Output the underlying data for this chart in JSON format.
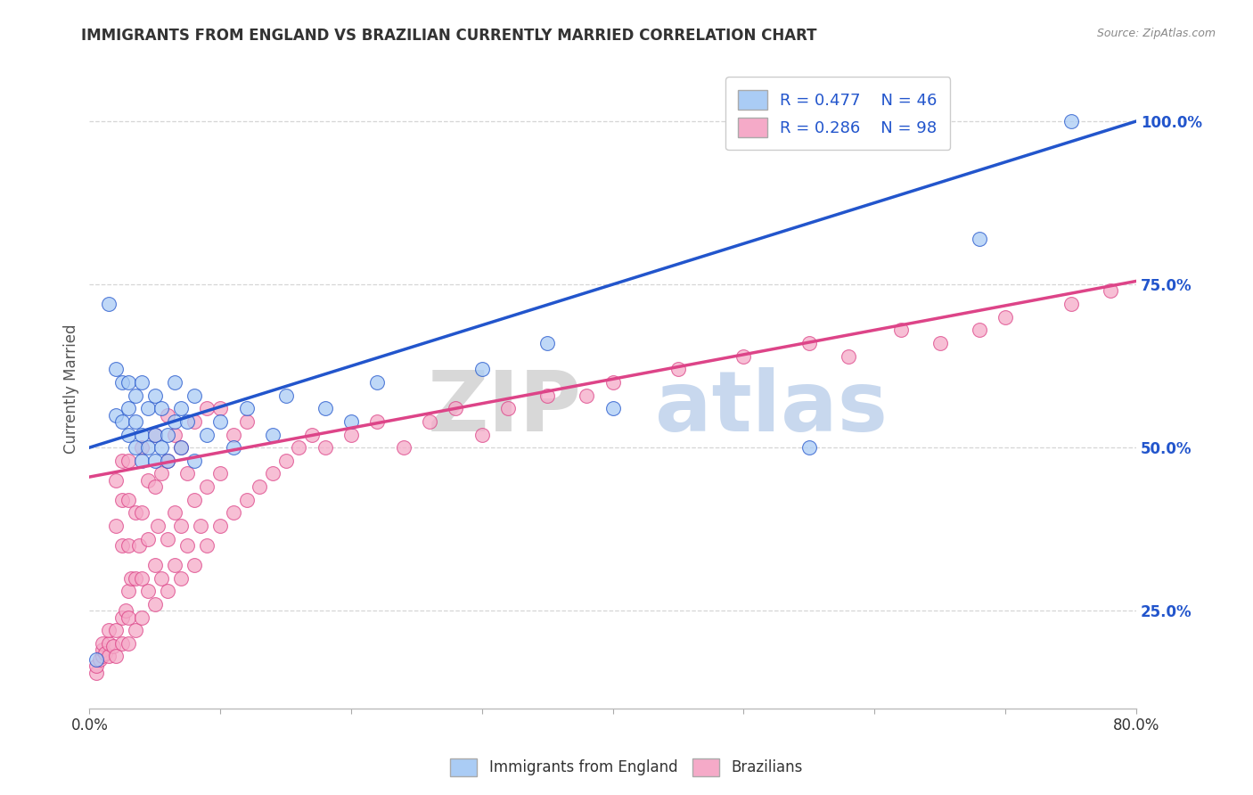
{
  "title": "IMMIGRANTS FROM ENGLAND VS BRAZILIAN CURRENTLY MARRIED CORRELATION CHART",
  "source": "Source: ZipAtlas.com",
  "ylabel": "Currently Married",
  "xmin": 0.0,
  "xmax": 0.8,
  "ymin": 0.1,
  "ymax": 1.08,
  "yticks": [
    0.25,
    0.5,
    0.75,
    1.0
  ],
  "ytick_labels": [
    "25.0%",
    "50.0%",
    "75.0%",
    "100.0%"
  ],
  "blue_R": 0.477,
  "blue_N": 46,
  "pink_R": 0.286,
  "pink_N": 98,
  "blue_color": "#aaccf5",
  "blue_line_color": "#2255cc",
  "pink_color": "#f5aac8",
  "pink_line_color": "#dd4488",
  "legend_label_blue": "Immigrants from England",
  "legend_label_pink": "Brazilians",
  "blue_scatter_x": [
    0.005,
    0.015,
    0.02,
    0.02,
    0.025,
    0.025,
    0.03,
    0.03,
    0.03,
    0.035,
    0.035,
    0.035,
    0.04,
    0.04,
    0.04,
    0.045,
    0.045,
    0.05,
    0.05,
    0.05,
    0.055,
    0.055,
    0.06,
    0.06,
    0.065,
    0.065,
    0.07,
    0.07,
    0.075,
    0.08,
    0.08,
    0.09,
    0.1,
    0.11,
    0.12,
    0.14,
    0.15,
    0.18,
    0.2,
    0.22,
    0.3,
    0.35,
    0.4,
    0.55,
    0.68,
    0.75
  ],
  "blue_scatter_y": [
    0.175,
    0.72,
    0.55,
    0.62,
    0.54,
    0.6,
    0.52,
    0.56,
    0.6,
    0.5,
    0.54,
    0.58,
    0.48,
    0.52,
    0.6,
    0.5,
    0.56,
    0.48,
    0.52,
    0.58,
    0.5,
    0.56,
    0.48,
    0.52,
    0.54,
    0.6,
    0.5,
    0.56,
    0.54,
    0.48,
    0.58,
    0.52,
    0.54,
    0.5,
    0.56,
    0.52,
    0.58,
    0.56,
    0.54,
    0.6,
    0.62,
    0.66,
    0.56,
    0.5,
    0.82,
    1.0
  ],
  "pink_scatter_x": [
    0.005,
    0.005,
    0.008,
    0.01,
    0.01,
    0.01,
    0.012,
    0.015,
    0.015,
    0.015,
    0.018,
    0.02,
    0.02,
    0.02,
    0.02,
    0.025,
    0.025,
    0.025,
    0.025,
    0.025,
    0.028,
    0.03,
    0.03,
    0.03,
    0.03,
    0.03,
    0.03,
    0.032,
    0.035,
    0.035,
    0.035,
    0.038,
    0.04,
    0.04,
    0.04,
    0.04,
    0.045,
    0.045,
    0.045,
    0.05,
    0.05,
    0.05,
    0.05,
    0.052,
    0.055,
    0.055,
    0.06,
    0.06,
    0.06,
    0.06,
    0.065,
    0.065,
    0.065,
    0.07,
    0.07,
    0.07,
    0.075,
    0.075,
    0.08,
    0.08,
    0.08,
    0.085,
    0.09,
    0.09,
    0.09,
    0.1,
    0.1,
    0.1,
    0.11,
    0.11,
    0.12,
    0.12,
    0.13,
    0.14,
    0.15,
    0.16,
    0.17,
    0.18,
    0.2,
    0.22,
    0.24,
    0.26,
    0.28,
    0.3,
    0.32,
    0.35,
    0.38,
    0.4,
    0.45,
    0.5,
    0.55,
    0.58,
    0.62,
    0.65,
    0.68,
    0.7,
    0.75,
    0.78
  ],
  "pink_scatter_y": [
    0.155,
    0.165,
    0.175,
    0.18,
    0.19,
    0.2,
    0.185,
    0.18,
    0.2,
    0.22,
    0.195,
    0.18,
    0.22,
    0.38,
    0.45,
    0.2,
    0.24,
    0.35,
    0.42,
    0.48,
    0.25,
    0.2,
    0.24,
    0.28,
    0.35,
    0.42,
    0.48,
    0.3,
    0.22,
    0.3,
    0.4,
    0.35,
    0.24,
    0.3,
    0.4,
    0.5,
    0.28,
    0.36,
    0.45,
    0.26,
    0.32,
    0.44,
    0.52,
    0.38,
    0.3,
    0.46,
    0.28,
    0.36,
    0.48,
    0.55,
    0.32,
    0.4,
    0.52,
    0.3,
    0.38,
    0.5,
    0.35,
    0.46,
    0.32,
    0.42,
    0.54,
    0.38,
    0.35,
    0.44,
    0.56,
    0.38,
    0.46,
    0.56,
    0.4,
    0.52,
    0.42,
    0.54,
    0.44,
    0.46,
    0.48,
    0.5,
    0.52,
    0.5,
    0.52,
    0.54,
    0.5,
    0.54,
    0.56,
    0.52,
    0.56,
    0.58,
    0.58,
    0.6,
    0.62,
    0.64,
    0.66,
    0.64,
    0.68,
    0.66,
    0.68,
    0.7,
    0.72,
    0.74
  ],
  "blue_line_x0": 0.0,
  "blue_line_y0": 0.5,
  "blue_line_x1": 0.8,
  "blue_line_y1": 1.0,
  "pink_line_x0": 0.0,
  "pink_line_y0": 0.455,
  "pink_line_x1": 0.8,
  "pink_line_y1": 0.755
}
